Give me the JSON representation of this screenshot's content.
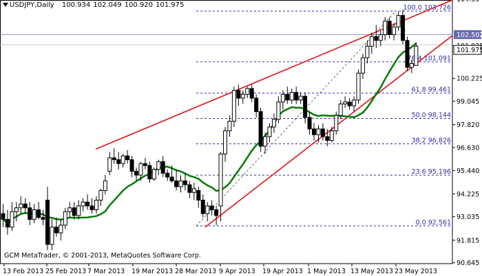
{
  "header": {
    "symbol": "USDJPY,Daily",
    "open": "100.934",
    "high": "102.049",
    "low": "100.920",
    "close": "101.975",
    "header_icon": "triangle-down-icon"
  },
  "copyright": "GCM MetaTrader, © 2001-2013, MetaQuotes Software Corp.",
  "chart_data": {
    "type": "candlestick",
    "title": "USDJPY,Daily",
    "y_range": [
      90.6,
      104.3
    ],
    "y_ticks": [
      "104.35",
      "101.925",
      "100.225",
      "99.045",
      "97.820",
      "96.630",
      "95.440",
      "94.225",
      "93.035",
      "91.815",
      "90.645"
    ],
    "x_ticks": [
      "13 Feb 2013",
      "25 Feb 2013",
      "7 Mar 2013",
      "19 Mar 2013",
      "28 Mar 2013",
      "9 Apr 2013",
      "19 Apr 2013",
      "1 May 2013",
      "13 May 2013",
      "23 May 2013"
    ],
    "price_labels": {
      "level_a": "102.502",
      "current": "101.975"
    },
    "fibonacci": [
      {
        "label": "100.0 103.726",
        "value": 103.726
      },
      {
        "label": "76.4 101.091",
        "value": 101.091
      },
      {
        "label": "61.8 99.461",
        "value": 99.461
      },
      {
        "label": "50.0 98.144",
        "value": 98.144
      },
      {
        "label": "38.2 96.826",
        "value": 96.826
      },
      {
        "label": "23.6 95.196",
        "value": 95.196
      },
      {
        "label": "0.0 92.561",
        "value": 92.561
      }
    ],
    "candles": [
      {
        "o": 93.2,
        "h": 93.7,
        "l": 92.5,
        "c": 92.9
      },
      {
        "o": 92.9,
        "h": 93.4,
        "l": 92.1,
        "c": 92.5
      },
      {
        "o": 92.5,
        "h": 93.8,
        "l": 92.3,
        "c": 93.3
      },
      {
        "o": 93.3,
        "h": 93.8,
        "l": 92.8,
        "c": 93.5
      },
      {
        "o": 93.5,
        "h": 94.1,
        "l": 93.2,
        "c": 93.7
      },
      {
        "o": 93.7,
        "h": 94.0,
        "l": 93.2,
        "c": 93.5
      },
      {
        "o": 93.5,
        "h": 93.8,
        "l": 92.6,
        "c": 92.9
      },
      {
        "o": 92.9,
        "h": 93.7,
        "l": 92.7,
        "c": 93.4
      },
      {
        "o": 93.4,
        "h": 93.8,
        "l": 92.9,
        "c": 93.0
      },
      {
        "o": 93.0,
        "h": 93.4,
        "l": 92.6,
        "c": 92.9
      },
      {
        "o": 93.9,
        "h": 94.6,
        "l": 91.3,
        "c": 91.6
      },
      {
        "o": 91.6,
        "h": 92.9,
        "l": 91.3,
        "c": 92.5
      },
      {
        "o": 92.5,
        "h": 93.0,
        "l": 92.0,
        "c": 92.2
      },
      {
        "o": 92.2,
        "h": 92.9,
        "l": 91.8,
        "c": 92.6
      },
      {
        "o": 92.6,
        "h": 93.5,
        "l": 92.4,
        "c": 93.3
      },
      {
        "o": 93.3,
        "h": 93.8,
        "l": 93.0,
        "c": 93.5
      },
      {
        "o": 93.5,
        "h": 93.8,
        "l": 92.9,
        "c": 93.1
      },
      {
        "o": 93.1,
        "h": 93.9,
        "l": 92.9,
        "c": 93.6
      },
      {
        "o": 93.6,
        "h": 94.0,
        "l": 93.3,
        "c": 93.8
      },
      {
        "o": 93.8,
        "h": 94.2,
        "l": 93.4,
        "c": 93.6
      },
      {
        "o": 93.6,
        "h": 94.0,
        "l": 93.2,
        "c": 93.4
      },
      {
        "o": 93.4,
        "h": 94.1,
        "l": 93.2,
        "c": 93.9
      },
      {
        "o": 93.9,
        "h": 94.5,
        "l": 93.6,
        "c": 94.4
      },
      {
        "o": 94.4,
        "h": 95.2,
        "l": 94.2,
        "c": 94.9
      },
      {
        "o": 95.4,
        "h": 96.4,
        "l": 95.2,
        "c": 96.1
      },
      {
        "o": 96.1,
        "h": 96.6,
        "l": 95.8,
        "c": 96.0
      },
      {
        "o": 96.0,
        "h": 96.4,
        "l": 95.5,
        "c": 95.8
      },
      {
        "o": 95.8,
        "h": 96.3,
        "l": 95.6,
        "c": 96.2
      },
      {
        "o": 96.2,
        "h": 96.5,
        "l": 95.8,
        "c": 96.0
      },
      {
        "o": 96.0,
        "h": 96.2,
        "l": 95.1,
        "c": 95.4
      },
      {
        "o": 95.4,
        "h": 95.6,
        "l": 94.9,
        "c": 95.2
      },
      {
        "o": 95.2,
        "h": 95.9,
        "l": 94.9,
        "c": 95.8
      },
      {
        "o": 95.8,
        "h": 96.1,
        "l": 95.5,
        "c": 95.7
      },
      {
        "o": 95.7,
        "h": 95.9,
        "l": 94.8,
        "c": 95.0
      },
      {
        "o": 95.0,
        "h": 95.6,
        "l": 94.9,
        "c": 95.5
      },
      {
        "o": 95.5,
        "h": 96.0,
        "l": 95.2,
        "c": 95.9
      },
      {
        "o": 95.9,
        "h": 96.2,
        "l": 95.1,
        "c": 95.3
      },
      {
        "o": 95.3,
        "h": 95.5,
        "l": 94.9,
        "c": 95.1
      },
      {
        "o": 95.1,
        "h": 95.7,
        "l": 94.8,
        "c": 94.9
      },
      {
        "o": 94.9,
        "h": 95.5,
        "l": 94.4,
        "c": 94.6
      },
      {
        "o": 94.6,
        "h": 95.2,
        "l": 94.3,
        "c": 94.9
      },
      {
        "o": 94.9,
        "h": 95.3,
        "l": 94.4,
        "c": 94.7
      },
      {
        "o": 94.7,
        "h": 94.9,
        "l": 94.0,
        "c": 94.3
      },
      {
        "o": 94.3,
        "h": 94.8,
        "l": 93.9,
        "c": 94.5
      },
      {
        "o": 94.4,
        "h": 94.6,
        "l": 93.5,
        "c": 93.9
      },
      {
        "o": 93.9,
        "h": 94.2,
        "l": 93.0,
        "c": 93.2
      },
      {
        "o": 93.2,
        "h": 93.8,
        "l": 92.8,
        "c": 93.6
      },
      {
        "o": 93.6,
        "h": 93.9,
        "l": 93.1,
        "c": 93.4
      },
      {
        "o": 93.4,
        "h": 93.6,
        "l": 92.6,
        "c": 93.1
      },
      {
        "o": 93.6,
        "h": 96.4,
        "l": 92.8,
        "c": 96.3
      },
      {
        "o": 96.3,
        "h": 97.7,
        "l": 95.9,
        "c": 97.5
      },
      {
        "o": 97.5,
        "h": 98.3,
        "l": 97.2,
        "c": 98.0
      },
      {
        "o": 98.0,
        "h": 99.8,
        "l": 97.7,
        "c": 99.6
      },
      {
        "o": 99.6,
        "h": 99.9,
        "l": 98.8,
        "c": 99.2
      },
      {
        "o": 99.2,
        "h": 99.6,
        "l": 98.9,
        "c": 99.4
      },
      {
        "o": 99.4,
        "h": 99.8,
        "l": 99.2,
        "c": 99.7
      },
      {
        "o": 99.7,
        "h": 99.9,
        "l": 99.0,
        "c": 99.2
      },
      {
        "o": 99.2,
        "h": 99.4,
        "l": 98.2,
        "c": 98.5
      },
      {
        "o": 98.5,
        "h": 98.7,
        "l": 96.4,
        "c": 96.7
      },
      {
        "o": 96.7,
        "h": 97.4,
        "l": 96.3,
        "c": 97.2
      },
      {
        "o": 97.2,
        "h": 97.9,
        "l": 96.9,
        "c": 97.7
      },
      {
        "o": 97.7,
        "h": 98.4,
        "l": 97.4,
        "c": 98.1
      },
      {
        "o": 98.1,
        "h": 99.3,
        "l": 97.9,
        "c": 99.0
      },
      {
        "o": 99.0,
        "h": 99.6,
        "l": 98.6,
        "c": 99.4
      },
      {
        "o": 99.4,
        "h": 99.8,
        "l": 98.9,
        "c": 99.1
      },
      {
        "o": 99.1,
        "h": 99.7,
        "l": 98.9,
        "c": 99.5
      },
      {
        "o": 99.5,
        "h": 99.8,
        "l": 98.9,
        "c": 99.1
      },
      {
        "o": 99.1,
        "h": 99.5,
        "l": 98.9,
        "c": 99.3
      },
      {
        "o": 99.3,
        "h": 99.5,
        "l": 97.9,
        "c": 98.2
      },
      {
        "o": 98.2,
        "h": 98.5,
        "l": 97.3,
        "c": 97.6
      },
      {
        "o": 97.6,
        "h": 97.9,
        "l": 97.0,
        "c": 97.3
      },
      {
        "o": 97.3,
        "h": 97.8,
        "l": 96.9,
        "c": 97.6
      },
      {
        "o": 97.6,
        "h": 97.9,
        "l": 97.0,
        "c": 97.2
      },
      {
        "o": 97.2,
        "h": 97.6,
        "l": 96.7,
        "c": 97.0
      },
      {
        "o": 97.0,
        "h": 97.7,
        "l": 96.9,
        "c": 97.5
      },
      {
        "o": 97.5,
        "h": 98.5,
        "l": 97.3,
        "c": 98.3
      },
      {
        "o": 98.3,
        "h": 99.1,
        "l": 98.1,
        "c": 98.9
      },
      {
        "o": 98.9,
        "h": 99.3,
        "l": 98.7,
        "c": 99.0
      },
      {
        "o": 99.0,
        "h": 99.2,
        "l": 98.6,
        "c": 98.8
      },
      {
        "o": 98.8,
        "h": 99.3,
        "l": 98.5,
        "c": 99.1
      },
      {
        "o": 99.1,
        "h": 100.7,
        "l": 98.9,
        "c": 100.5
      },
      {
        "o": 100.5,
        "h": 101.5,
        "l": 100.2,
        "c": 101.3
      },
      {
        "o": 101.3,
        "h": 102.2,
        "l": 101.0,
        "c": 101.9
      },
      {
        "o": 101.9,
        "h": 102.6,
        "l": 101.5,
        "c": 102.4
      },
      {
        "o": 102.4,
        "h": 103.0,
        "l": 101.8,
        "c": 102.2
      },
      {
        "o": 102.2,
        "h": 102.7,
        "l": 101.9,
        "c": 102.5
      },
      {
        "o": 102.5,
        "h": 103.4,
        "l": 102.2,
        "c": 103.2
      },
      {
        "o": 103.2,
        "h": 103.4,
        "l": 102.3,
        "c": 102.5
      },
      {
        "o": 102.5,
        "h": 103.1,
        "l": 102.2,
        "c": 102.9
      },
      {
        "o": 102.9,
        "h": 103.7,
        "l": 102.7,
        "c": 103.5
      },
      {
        "o": 103.5,
        "h": 103.8,
        "l": 102.0,
        "c": 102.2
      },
      {
        "o": 102.2,
        "h": 102.4,
        "l": 100.6,
        "c": 100.8
      },
      {
        "o": 100.8,
        "h": 101.2,
        "l": 100.5,
        "c": 101.0
      },
      {
        "o": 100.9,
        "h": 102.1,
        "l": 100.9,
        "c": 101.9
      }
    ],
    "moving_average": {
      "name": "MA",
      "color": "#007a00"
    },
    "colors": {
      "trendline": "#e01010",
      "fib": "#2b2bb0",
      "ma": "#007a00",
      "candle": "#000000",
      "grid": "#b8b8d8"
    }
  }
}
